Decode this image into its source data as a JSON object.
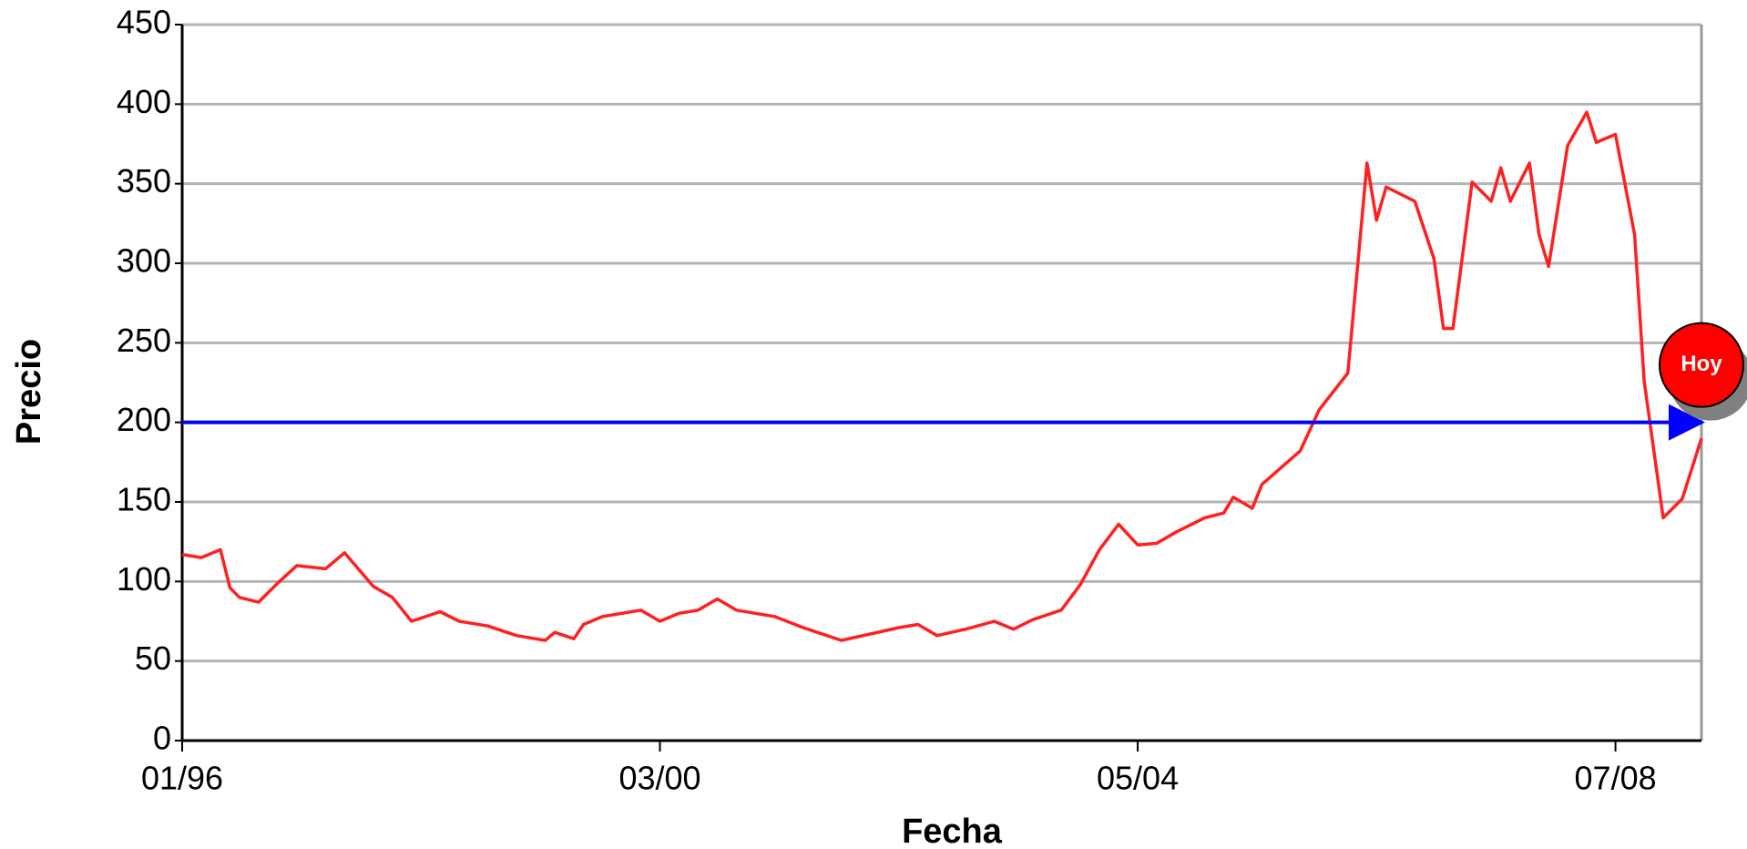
{
  "chart_data": {
    "type": "line",
    "x_label": "Fecha",
    "y_label": "Precio",
    "x": [
      "1996-01",
      "1996-03",
      "1996-05",
      "1996-06",
      "1996-07",
      "1996-09",
      "1996-11",
      "1997-01",
      "1997-04",
      "1997-06",
      "1997-09",
      "1997-11",
      "1998-01",
      "1998-04",
      "1998-06",
      "1998-09",
      "1998-12",
      "1999-03",
      "1999-04",
      "1999-06",
      "1999-07",
      "1999-09",
      "2000-01",
      "2000-03",
      "2000-05",
      "2000-07",
      "2000-09",
      "2000-11",
      "2001-03",
      "2001-06",
      "2001-10",
      "2002-01",
      "2002-04",
      "2002-06",
      "2002-08",
      "2002-11",
      "2003-02",
      "2003-04",
      "2003-06",
      "2003-09",
      "2003-11",
      "2004-01",
      "2004-03",
      "2004-05",
      "2004-07",
      "2004-09",
      "2004-12",
      "2005-02",
      "2005-03",
      "2005-05",
      "2005-06",
      "2005-10",
      "2005-12",
      "2006-03",
      "2006-05",
      "2006-06",
      "2006-07",
      "2006-10",
      "2006-12",
      "2007-01",
      "2007-02",
      "2007-04",
      "2007-06",
      "2007-07",
      "2007-08",
      "2007-10",
      "2007-11",
      "2007-12",
      "2008-02",
      "2008-04",
      "2008-05",
      "2008-07",
      "2008-09",
      "2008-10",
      "2008-12",
      "2009-02",
      "2009-04"
    ],
    "values": [
      117,
      115,
      120,
      96,
      90,
      87,
      99,
      110,
      108,
      118,
      97,
      90,
      75,
      81,
      75,
      72,
      66,
      63,
      68,
      64,
      73,
      78,
      82,
      75,
      80,
      82,
      89,
      82,
      78,
      71,
      63,
      67,
      71,
      73,
      66,
      70,
      75,
      70,
      76,
      82,
      98,
      120,
      136,
      123,
      124,
      131,
      140,
      143,
      153,
      146,
      161,
      182,
      208,
      231,
      363,
      327,
      348,
      339,
      303,
      259,
      259,
      351,
      339,
      360,
      339,
      363,
      318,
      298,
      374,
      395,
      376,
      381,
      318,
      226,
      140,
      152,
      190
    ],
    "color": "#ff2020",
    "xlim": [
      "1996-01",
      "2009-04"
    ],
    "xticks": [
      {
        "value": "1996-01",
        "label": "01/96"
      },
      {
        "value": "2000-03",
        "label": "03/00"
      },
      {
        "value": "2004-05",
        "label": "05/04"
      },
      {
        "value": "2008-07",
        "label": "07/08"
      }
    ],
    "ylim": [
      0,
      450
    ],
    "yticks": [
      0,
      50,
      100,
      150,
      200,
      250,
      300,
      350,
      400,
      450
    ],
    "grid": true,
    "hline": {
      "value": 200,
      "color": "#0000ff"
    },
    "annotation": "Hoy"
  }
}
